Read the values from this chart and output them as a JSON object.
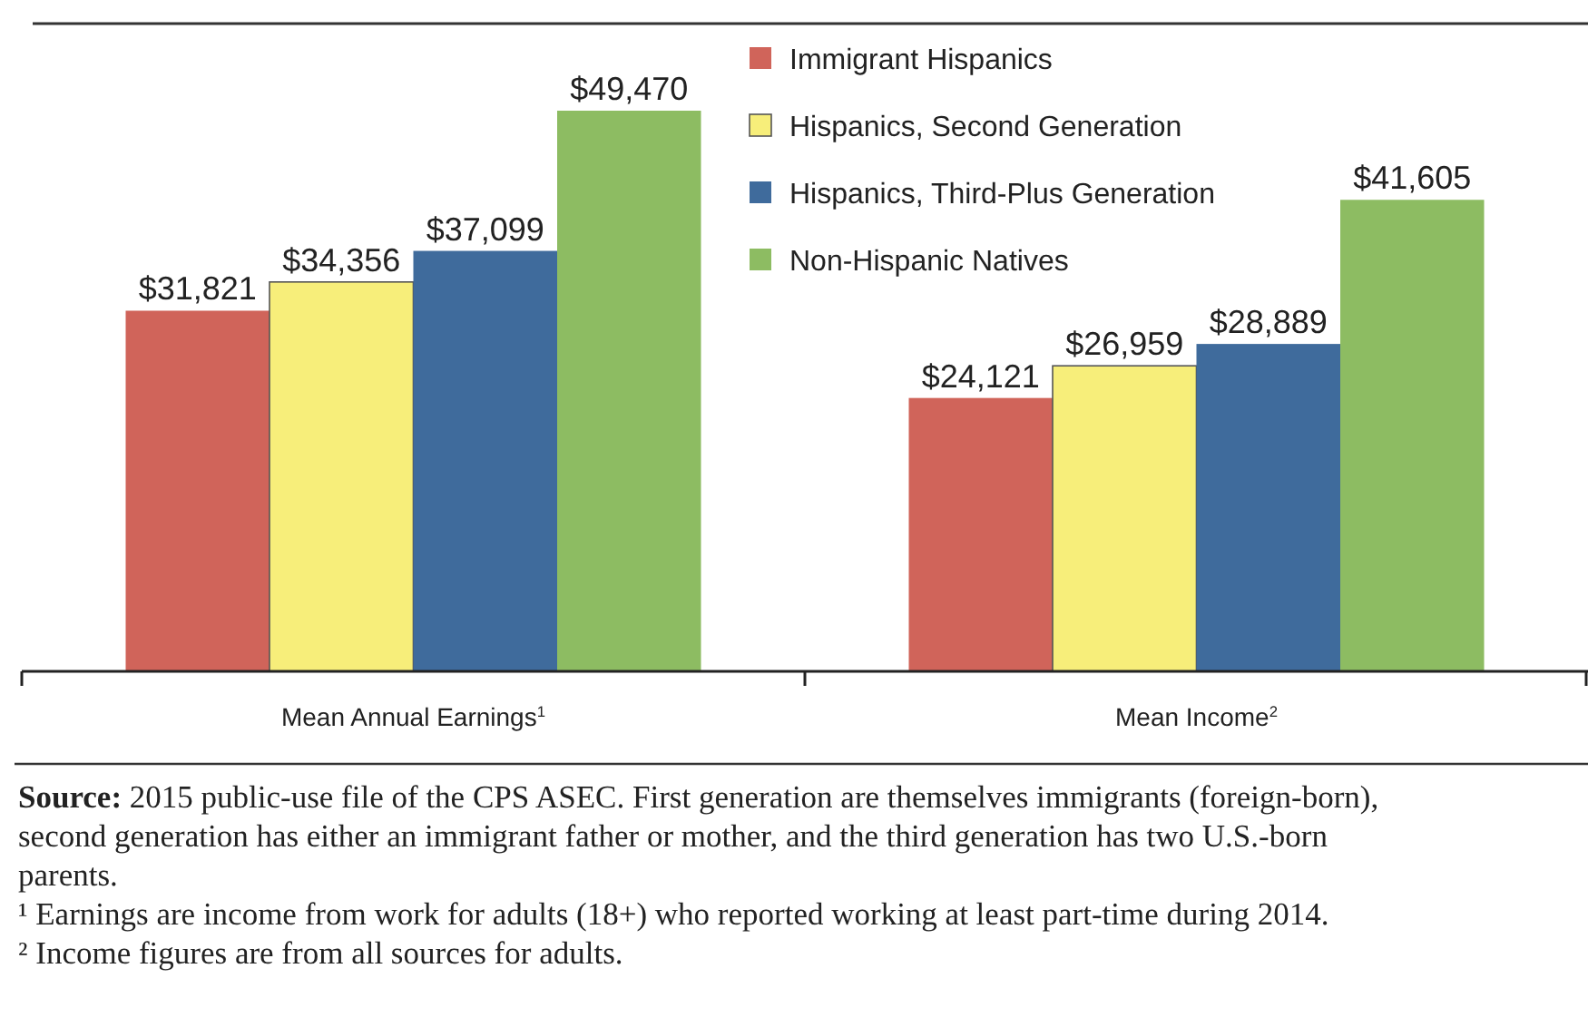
{
  "chart_data": {
    "type": "bar",
    "categories": [
      "Mean Annual Earnings$^{1}$",
      "Mean Income$^{2}$"
    ],
    "series": [
      {
        "name": "Immigrant Hispanics",
        "color": "#d0645a",
        "values": [
          31821,
          24121
        ],
        "value_labels": [
          "$31,821",
          "$24,121"
        ]
      },
      {
        "name": "Hispanics, Second Generation",
        "color": "#f7ee7a",
        "values": [
          34356,
          26959
        ],
        "value_labels": [
          "$34,356",
          "$26,959"
        ]
      },
      {
        "name": "Hispanics, Third-Plus Generation",
        "color": "#3f6b9c",
        "values": [
          37099,
          28889
        ],
        "value_labels": [
          "$37,099",
          "$28,889"
        ]
      },
      {
        "name": "Non-Hispanic Natives",
        "color": "#8dbc62",
        "values": [
          49470,
          41605
        ],
        "value_labels": [
          "$49,470",
          "$41,605"
        ]
      }
    ],
    "legend": "top",
    "annotations": [
      "Source: 2015 public-use file of the CPS ASEC. First generation are themselves immigrants (foreign-born),",
      "second generation has either an immigrant father or mother, and the third generation has two U.S.-born",
      "parents.",
      "¹ Earnings are income from work for adults (18+) who reported working at least part-time during 2014.",
      "² Income figures are from all sources for adults."
    ]
  }
}
